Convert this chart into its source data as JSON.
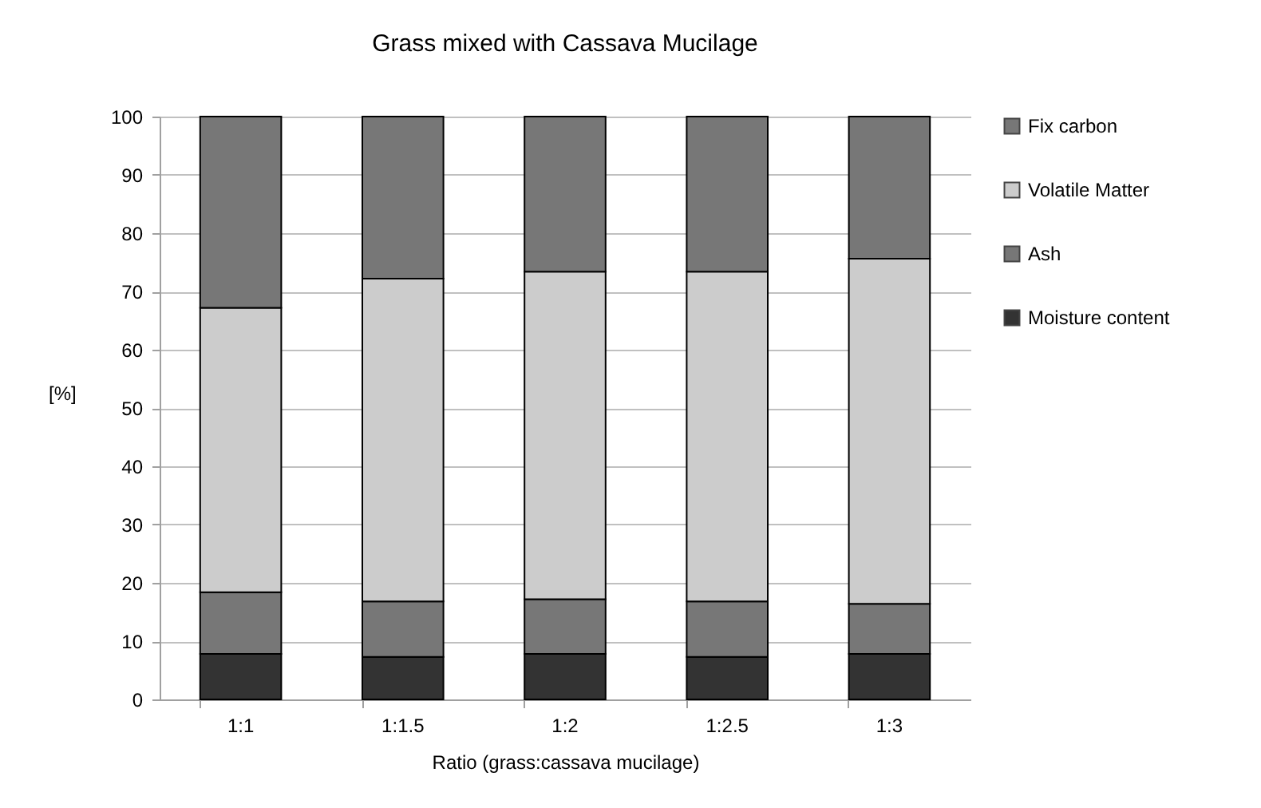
{
  "chart_data": {
    "type": "bar",
    "title": "Grass mixed with Cassava Mucilage",
    "xlabel": "Ratio (grass:cassava mucilage)",
    "ylabel": "[%]",
    "categories": [
      "1:1",
      "1:1.5",
      "1:2",
      "1:2.5",
      "1:3"
    ],
    "stacked": true,
    "series": [
      {
        "name": "Moisture content",
        "color": "#333333",
        "values": [
          7.8,
          7.3,
          7.8,
          7.3,
          7.8
        ]
      },
      {
        "name": "Ash",
        "color": "#777777",
        "values": [
          10.6,
          9.5,
          9.4,
          9.5,
          8.6
        ]
      },
      {
        "name": "Volatile Matter",
        "color": "#cccccc",
        "values": [
          48.8,
          55.4,
          56.2,
          56.6,
          59.2
        ]
      },
      {
        "name": "Fix carbon",
        "color": "#777777",
        "values": [
          32.8,
          27.8,
          26.6,
          26.6,
          24.4
        ]
      }
    ],
    "ylim": [
      0,
      100
    ],
    "yticks": [
      0,
      10,
      20,
      30,
      40,
      50,
      60,
      70,
      80,
      90,
      100
    ],
    "grid": "y",
    "legend": "right"
  }
}
